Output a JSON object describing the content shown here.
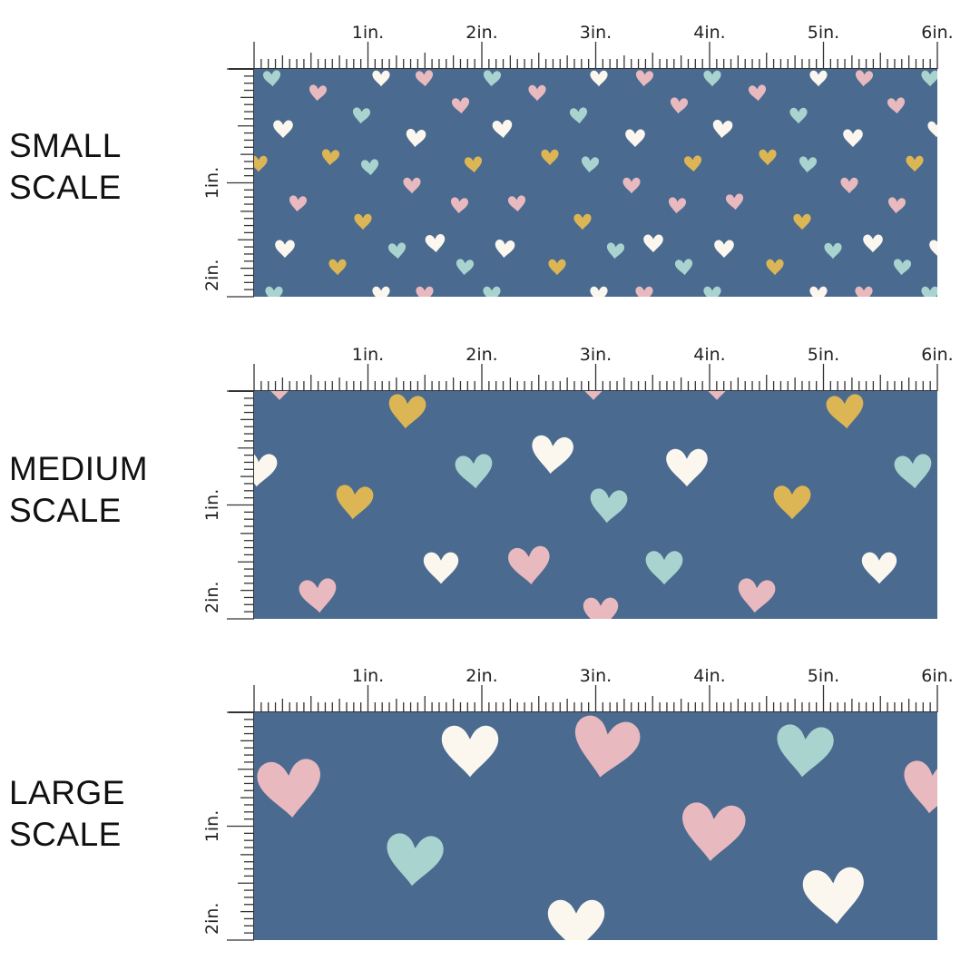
{
  "colors": {
    "fabric": "#4a6a8f",
    "pink": "#e8b9be",
    "white": "#fbf7ee",
    "mint": "#a9d3cf",
    "mustard": "#dcb655",
    "ruler": "#333333"
  },
  "ruler": {
    "top_labels": [
      "1in.",
      "2in.",
      "3in.",
      "4in.",
      "5in.",
      "6in."
    ],
    "side_labels": [
      "1in.",
      "2in."
    ]
  },
  "panels": [
    {
      "key": "small",
      "label_line1": "SMALL",
      "label_line2": "SCALE"
    },
    {
      "key": "medium",
      "label_line1": "MEDIUM",
      "label_line2": "SCALE"
    },
    {
      "key": "large",
      "label_line1": "LARGE",
      "label_line2": "SCALE"
    }
  ]
}
